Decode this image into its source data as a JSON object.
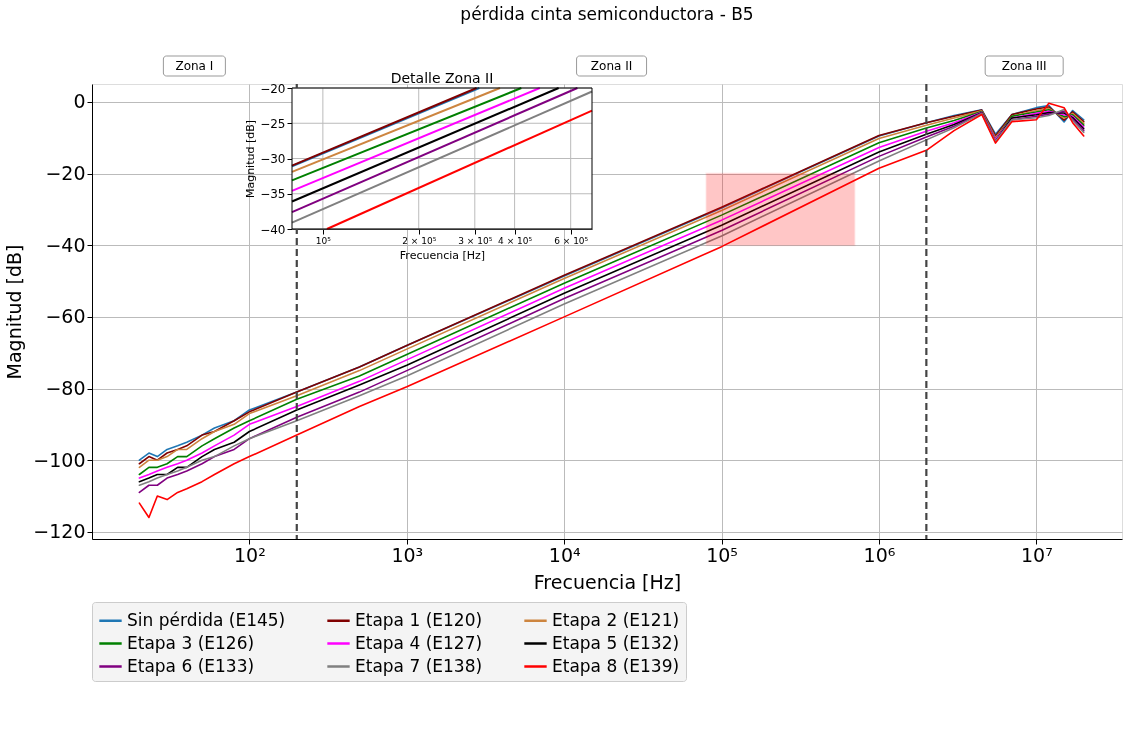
{
  "chart_data": [
    {
      "type": "line",
      "title": "pérdida cinta semiconductora - B5",
      "xlabel": "Frecuencia [Hz]",
      "ylabel": "Magnitud [dB]",
      "x": [
        20,
        23,
        26,
        30,
        35,
        40,
        50,
        60,
        80,
        100,
        200,
        500,
        1000,
        10000,
        100000,
        1000000,
        2000000,
        3000000,
        4500000,
        5500000,
        7000000,
        10000000,
        12000000,
        15000000,
        17000000,
        20000000
      ],
      "series": [
        {
          "name": "Sin pérdida (E145)",
          "color": "#1f77b4",
          "values": [
            -100,
            -98,
            -99,
            -97,
            -96,
            -95,
            -93,
            -91,
            -89,
            -86,
            -81,
            -74,
            -68,
            -48.6,
            -29.6,
            -9.5,
            -5.8,
            -3.8,
            -2.2,
            -9,
            -3.5,
            -1.6,
            -1.0,
            -5.6,
            -2.4,
            -5.0
          ]
        },
        {
          "name": "Etapa 1 (E120)",
          "color": "#800000",
          "values": [
            -101,
            -99,
            -100,
            -98,
            -97,
            -96,
            -93,
            -92,
            -89,
            -86.5,
            -81,
            -74,
            -68,
            -48.4,
            -29.4,
            -9.4,
            -5.8,
            -4,
            -2.3,
            -9.5,
            -3.5,
            -2.0,
            -1.4,
            -5.1,
            -2.8,
            -5.5
          ]
        },
        {
          "name": "Etapa 2 (E121)",
          "color": "#cd853f",
          "values": [
            -102,
            -100,
            -100,
            -99,
            -97,
            -97,
            -94,
            -92,
            -90,
            -87,
            -82,
            -75,
            -69,
            -49.3,
            -30.3,
            -10.2,
            -6.5,
            -4.5,
            -2.5,
            -10,
            -4,
            -2.4,
            -1.8,
            -4.6,
            -3.2,
            -6.0
          ]
        },
        {
          "name": "Etapa 3 (E126)",
          "color": "#008000",
          "values": [
            -104,
            -102,
            -102,
            -101,
            -99,
            -99,
            -96,
            -94,
            -91,
            -89,
            -83,
            -76.5,
            -70.5,
            -50.6,
            -31.6,
            -11.4,
            -7.3,
            -5.2,
            -2.7,
            -10.5,
            -4,
            -2.8,
            -2.2,
            -4.1,
            -3.6,
            -6.5
          ]
        },
        {
          "name": "Etapa 4 (E127)",
          "color": "#ff00ff",
          "values": [
            -105,
            -104,
            -103,
            -102,
            -101,
            -100,
            -98,
            -96,
            -93,
            -90,
            -85,
            -78,
            -72,
            -52,
            -33,
            -12.7,
            -8.2,
            -5.8,
            -2.9,
            -10.5,
            -4.5,
            -3.2,
            -2.6,
            -3.6,
            -4.0,
            -7.0
          ]
        },
        {
          "name": "Etapa 5 (E132)",
          "color": "#000000",
          "values": [
            -106,
            -105,
            -104,
            -104,
            -102,
            -102,
            -99,
            -97,
            -95,
            -92,
            -86,
            -79,
            -73.5,
            -53.4,
            -34.4,
            -14,
            -9,
            -6.3,
            -3,
            -11,
            -4.5,
            -3.6,
            -3.0,
            -3.1,
            -4.4,
            -7.5
          ]
        },
        {
          "name": "Etapa 6 (E133)",
          "color": "#800080",
          "values": [
            -109,
            -107,
            -107,
            -105,
            -104,
            -103,
            -101,
            -99,
            -97,
            -94,
            -88,
            -81,
            -75,
            -54.9,
            -35.9,
            -15.2,
            -9.8,
            -6.8,
            -3.1,
            -11,
            -5,
            -4.0,
            -3.4,
            -2.6,
            -4.8,
            -8.0
          ]
        },
        {
          "name": "Etapa 7 (E138)",
          "color": "#808080",
          "values": [
            -107,
            -106,
            -105,
            -104,
            -103,
            -102,
            -100,
            -99,
            -96,
            -94,
            -89,
            -82,
            -76.5,
            -56.4,
            -37.4,
            -16.5,
            -10.6,
            -7.2,
            -3.2,
            -11,
            -5,
            -4.4,
            -3.8,
            -2.1,
            -5.2,
            -8.5
          ]
        },
        {
          "name": "Etapa 8 (E139)",
          "color": "#ff0000",
          "values": [
            -112,
            -116,
            -110,
            -111,
            -109,
            -108,
            -106,
            -104,
            -101,
            -99,
            -93,
            -85,
            -79.5,
            -60,
            -40.4,
            -18.5,
            -13.5,
            -8,
            -3.5,
            -11.5,
            -5.5,
            -5.0,
            -0.4,
            -1.6,
            -5.8,
            -9.5
          ]
        }
      ],
      "xlim": [
        10,
        35000000
      ],
      "ylim": [
        -122,
        5
      ],
      "xticks": [
        {
          "value": 100,
          "label": "10²"
        },
        {
          "value": 1000,
          "label": "10³"
        },
        {
          "value": 10000,
          "label": "10⁴"
        },
        {
          "value": 100000,
          "label": "10⁵"
        },
        {
          "value": 1000000,
          "label": "10⁶"
        },
        {
          "value": 10000000,
          "label": "10⁷"
        }
      ],
      "yticks": [
        -120,
        -100,
        -80,
        -60,
        -40,
        -20,
        0
      ],
      "log": "x",
      "grid": true,
      "legend": "bottom",
      "ref_lines": [
        {
          "axis": "x",
          "value": 200,
          "color": "#444444",
          "line_style": "dashed"
        },
        {
          "axis": "x",
          "value": 2000000,
          "color": "#444444",
          "line_style": "dashed"
        }
      ],
      "bands": [
        {
          "axis": "x",
          "from": 80000,
          "to": 700000,
          "color": "#ff0000"
        }
      ],
      "annotations": [
        "Zona I",
        "Zona II",
        "Zona III"
      ]
    },
    {
      "type": "line",
      "title": "Detalle Zona II",
      "xlabel": "Frecuencia [Hz]",
      "ylabel": "Magnitud [dB]",
      "series": [
        {
          "color": "#1f77b4",
          "x": [
            80000,
            310000
          ],
          "values": [
            -31.1,
            -20
          ]
        },
        {
          "color": "#800000",
          "x": [
            80000,
            304000
          ],
          "values": [
            -31,
            -20
          ]
        },
        {
          "color": "#cd853f",
          "x": [
            80000,
            360000
          ],
          "values": [
            -31.9,
            -20
          ]
        },
        {
          "color": "#008000",
          "x": [
            80000,
            420000
          ],
          "values": [
            -33.1,
            -20
          ]
        },
        {
          "color": "#ff00ff",
          "x": [
            80000,
            480000
          ],
          "values": [
            -34.6,
            -20
          ]
        },
        {
          "color": "#000000",
          "x": [
            80000,
            550000
          ],
          "values": [
            -36.1,
            -20
          ]
        },
        {
          "color": "#800080",
          "x": [
            80000,
            630000
          ],
          "values": [
            -37.6,
            -20
          ]
        },
        {
          "color": "#808080",
          "x": [
            80000,
            700000
          ],
          "values": [
            -39.1,
            -20.5
          ]
        },
        {
          "color": "#ff0000",
          "x": [
            103000,
            700000
          ],
          "values": [
            -40,
            -23.2
          ]
        }
      ],
      "xlim": [
        80000,
        700000
      ],
      "ylim": [
        -40,
        -20
      ],
      "xticks": [
        {
          "value": 100000,
          "label": "10⁵"
        },
        {
          "value": 200000,
          "label": "2 × 10⁵"
        },
        {
          "value": 300000,
          "label": "3 × 10⁵"
        },
        {
          "value": 400000,
          "label": "4 × 10⁵"
        },
        {
          "value": 600000,
          "label": "6 × 10⁵"
        }
      ],
      "yticks": [
        -40,
        -35,
        -30,
        -25,
        -20
      ],
      "log": "x",
      "grid": true
    }
  ]
}
